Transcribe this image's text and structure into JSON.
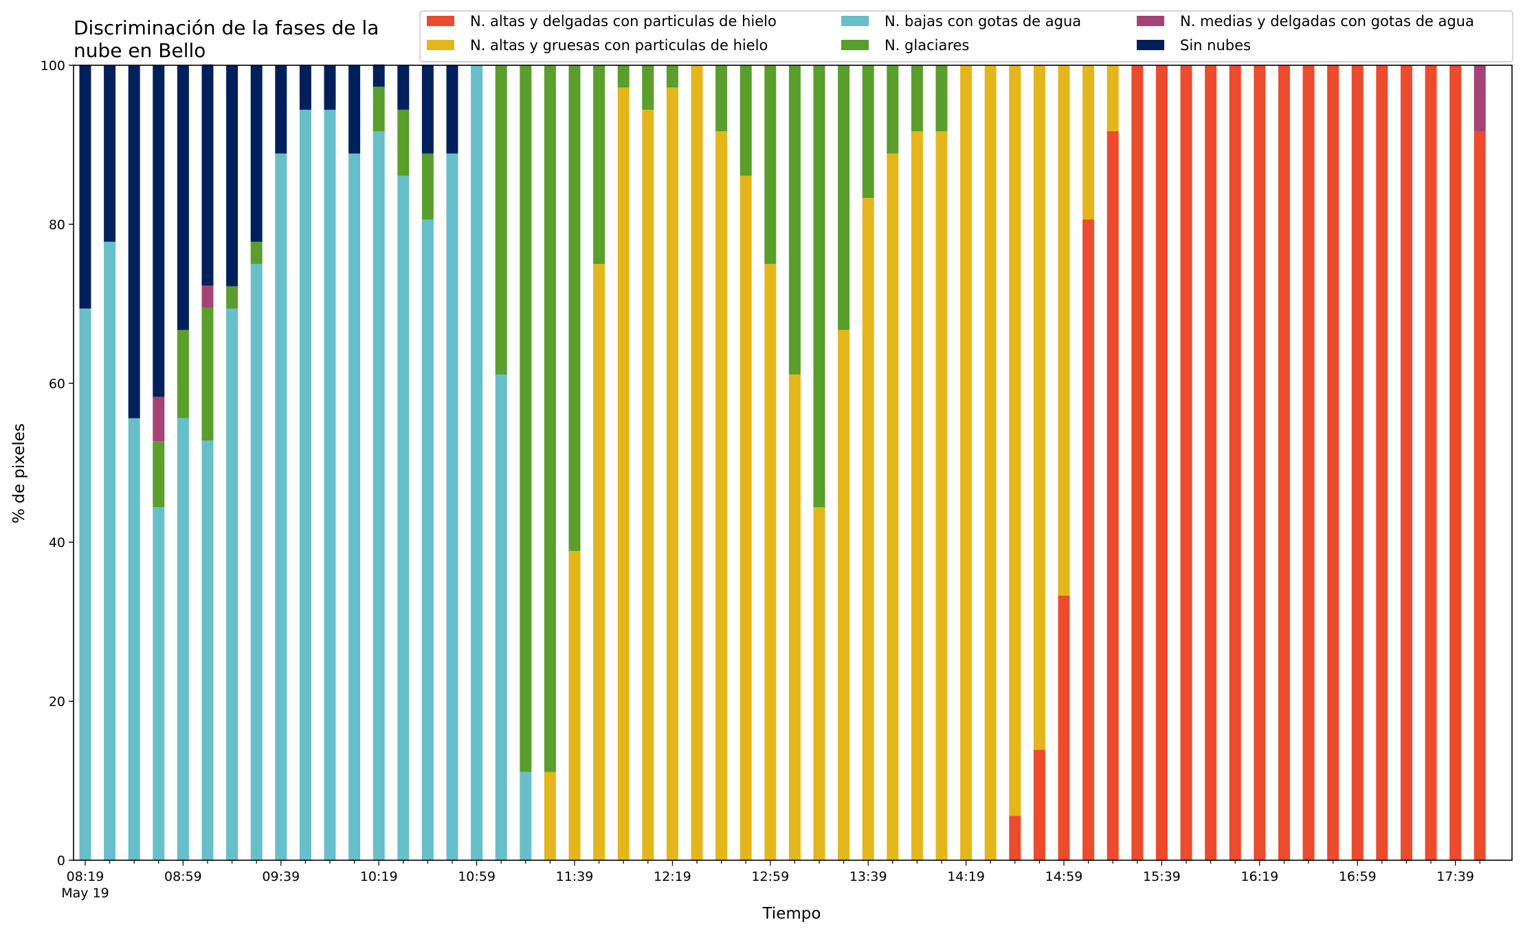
{
  "chart_data": {
    "type": "bar",
    "stacked": true,
    "title": "Discriminación de la fases de la nube en Bello",
    "title_lines": [
      "Discriminación de la fases de la",
      "nube en Bello"
    ],
    "xlabel": "Tiempo",
    "ylabel": "% de pixeles",
    "ylim": [
      0,
      100
    ],
    "yticks": [
      0,
      20,
      40,
      60,
      80,
      100
    ],
    "grid": false,
    "legend_position": "top-right",
    "xtick_labels": [
      "08:19",
      "08:59",
      "09:39",
      "10:19",
      "10:59",
      "11:39",
      "12:19",
      "12:59",
      "13:39",
      "14:19",
      "14:59",
      "15:39",
      "16:19",
      "16:59",
      "17:39"
    ],
    "xtick_label_sub": "May 19",
    "categories": [
      "08:19",
      "08:29",
      "08:39",
      "08:49",
      "08:59",
      "09:09",
      "09:19",
      "09:29",
      "09:39",
      "09:49",
      "09:59",
      "10:09",
      "10:19",
      "10:29",
      "10:39",
      "10:49",
      "10:59",
      "11:09",
      "11:19",
      "11:29",
      "11:39",
      "11:49",
      "11:59",
      "12:09",
      "12:19",
      "12:29",
      "12:39",
      "12:49",
      "12:59",
      "13:09",
      "13:19",
      "13:29",
      "13:39",
      "13:49",
      "13:59",
      "14:09",
      "14:19",
      "14:29",
      "14:39",
      "14:49",
      "14:59",
      "15:09",
      "15:19",
      "15:29",
      "15:39",
      "15:49",
      "15:59",
      "16:09",
      "16:19",
      "16:29",
      "16:39",
      "16:49",
      "16:59",
      "17:09",
      "17:19",
      "17:29",
      "17:39",
      "17:49"
    ],
    "series": [
      {
        "name": "N. altas y delgadas con particulas de hielo",
        "color": "#ec4b2d",
        "values": [
          0,
          0,
          0,
          0,
          0,
          0,
          0,
          0,
          0,
          0,
          0,
          0,
          0,
          0,
          0,
          0,
          0,
          0,
          0,
          0,
          0,
          0,
          0,
          0,
          0,
          0,
          0,
          0,
          0,
          0,
          0,
          0,
          0,
          0,
          0,
          0,
          0,
          0,
          5.6,
          13.9,
          33.3,
          80.6,
          91.7,
          100,
          100,
          100,
          100,
          100,
          100,
          100,
          100,
          100,
          100,
          100,
          100,
          100,
          100,
          91.7
        ]
      },
      {
        "name": "N. altas y gruesas con particulas de hielo",
        "color": "#e4b61b",
        "values": [
          0,
          0,
          0,
          0,
          0,
          0,
          0,
          0,
          0,
          0,
          0,
          0,
          0,
          0,
          0,
          0,
          0,
          0,
          0,
          11.1,
          38.9,
          75,
          97.2,
          94.4,
          97.2,
          100,
          91.7,
          86.1,
          75,
          61.1,
          44.4,
          66.7,
          83.3,
          88.9,
          91.7,
          91.7,
          100,
          100,
          94.4,
          86.1,
          66.7,
          19.4,
          8.3,
          0,
          0,
          0,
          0,
          0,
          0,
          0,
          0,
          0,
          0,
          0,
          0,
          0,
          0,
          0
        ]
      },
      {
        "name": "N. bajas con gotas de agua",
        "color": "#67bfca",
        "values": [
          69.4,
          77.8,
          55.6,
          44.4,
          55.6,
          52.8,
          69.4,
          75,
          88.9,
          94.4,
          94.4,
          88.9,
          91.7,
          86.1,
          80.6,
          88.9,
          100,
          61.1,
          11.1,
          0,
          0,
          0,
          0,
          0,
          0,
          0,
          0,
          0,
          0,
          0,
          0,
          0,
          0,
          0,
          0,
          0,
          0,
          0,
          0,
          0,
          0,
          0,
          0,
          0,
          0,
          0,
          0,
          0,
          0,
          0,
          0,
          0,
          0,
          0,
          0,
          0,
          0,
          0
        ]
      },
      {
        "name": "N. glaciares",
        "color": "#5a9e2c",
        "values": [
          0,
          0,
          0,
          8.3,
          11.1,
          16.7,
          2.8,
          2.8,
          0,
          0,
          0,
          0,
          5.6,
          8.3,
          8.3,
          0,
          0,
          38.9,
          88.9,
          88.9,
          61.1,
          25,
          2.8,
          5.6,
          2.8,
          0,
          8.3,
          13.9,
          25,
          38.9,
          55.6,
          33.3,
          16.7,
          11.1,
          8.3,
          8.3,
          0,
          0,
          0,
          0,
          0,
          0,
          0,
          0,
          0,
          0,
          0,
          0,
          0,
          0,
          0,
          0,
          0,
          0,
          0,
          0,
          0,
          0
        ]
      },
      {
        "name": "N. medias y delgadas con gotas de agua",
        "color": "#a44374",
        "values": [
          0,
          0,
          0,
          5.6,
          0,
          2.8,
          0,
          0,
          0,
          0,
          0,
          0,
          0,
          0,
          0,
          0,
          0,
          0,
          0,
          0,
          0,
          0,
          0,
          0,
          0,
          0,
          0,
          0,
          0,
          0,
          0,
          0,
          0,
          0,
          0,
          0,
          0,
          0,
          0,
          0,
          0,
          0,
          0,
          0,
          0,
          0,
          0,
          0,
          0,
          0,
          0,
          0,
          0,
          0,
          0,
          0,
          0,
          8.3
        ]
      },
      {
        "name": "Sin nubes",
        "color": "#00205c",
        "values": [
          30.6,
          22.2,
          44.4,
          41.7,
          33.3,
          27.8,
          27.8,
          22.2,
          11.1,
          5.6,
          5.6,
          11.1,
          2.8,
          5.6,
          11.1,
          11.1,
          0,
          0,
          0,
          0,
          0,
          0,
          0,
          0,
          0,
          0,
          0,
          0,
          0,
          0,
          0,
          0,
          0,
          0,
          0,
          0,
          0,
          0,
          0,
          0,
          0,
          0,
          0,
          0,
          0,
          0,
          0,
          0,
          0,
          0,
          0,
          0,
          0,
          0,
          0,
          0,
          0,
          0
        ]
      }
    ],
    "legend_order": [
      0,
      1,
      2,
      3,
      4,
      5
    ]
  }
}
